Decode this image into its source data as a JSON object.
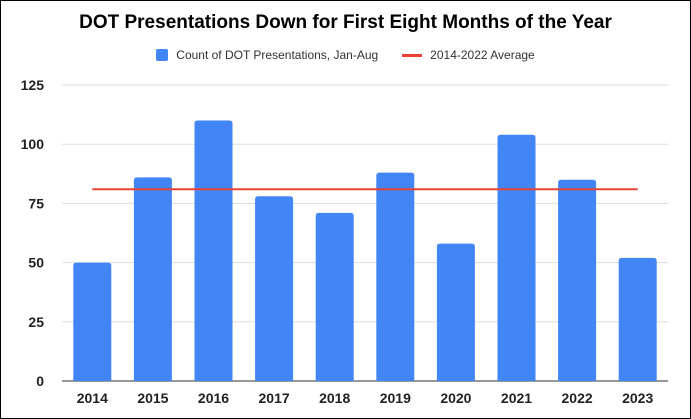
{
  "chart_data": {
    "type": "bar",
    "title": "DOT Presentations Down for First Eight Months of the Year",
    "categories": [
      "2014",
      "2015",
      "2016",
      "2017",
      "2018",
      "2019",
      "2020",
      "2021",
      "2022",
      "2023"
    ],
    "series": [
      {
        "name": "Count of DOT Presentations, Jan-Aug",
        "type": "bar",
        "values": [
          50,
          86,
          110,
          78,
          71,
          88,
          58,
          104,
          85,
          52
        ],
        "color": "#4285f4"
      },
      {
        "name": "2014-2022 Average",
        "type": "line",
        "value": 81,
        "x_range": [
          "2014",
          "2023"
        ],
        "color": "#ea4335"
      }
    ],
    "y_ticks": [
      "0",
      "25",
      "50",
      "75",
      "100",
      "125"
    ],
    "ylim": [
      0,
      125
    ],
    "xlabel": "",
    "ylabel": "",
    "grid": true,
    "legend_position": "top"
  }
}
